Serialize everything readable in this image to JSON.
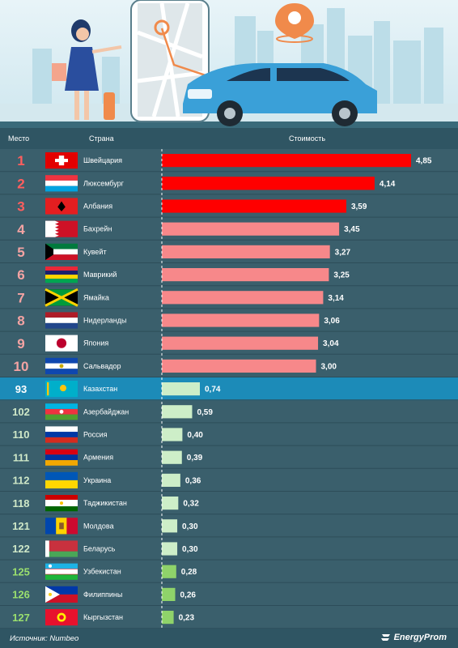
{
  "header": {
    "col_rank": "Место",
    "col_country": "Страна",
    "col_cost": "Стоимость"
  },
  "footer": {
    "source": "Источник: Numbeo",
    "brand": "EnergyProm"
  },
  "colors": {
    "top3": "#ff0000",
    "top10": "#f7888a",
    "other": "#cdeec8",
    "green": "#8fd36a",
    "rank_top": "#ff5e5e",
    "rank_top10": "#f4a3a3",
    "rank_other": "#cfe8c8",
    "rank_green": "#9be06e",
    "highlight_row": "#1c8bb8"
  },
  "chart_data": {
    "type": "bar",
    "orientation": "horizontal",
    "value_max": 4.85,
    "rows": [
      {
        "rank": "1",
        "country": "Швейцария",
        "value": 4.85,
        "flag": "switzerland-flag",
        "tier": "top3"
      },
      {
        "rank": "2",
        "country": "Люксембург",
        "value": 4.14,
        "flag": "luxembourg-flag",
        "tier": "top3"
      },
      {
        "rank": "3",
        "country": "Албания",
        "value": 3.59,
        "flag": "albania-flag",
        "tier": "top3"
      },
      {
        "rank": "4",
        "country": "Бахрейн",
        "value": 3.45,
        "flag": "bahrain-flag",
        "tier": "top10"
      },
      {
        "rank": "5",
        "country": "Кувейт",
        "value": 3.27,
        "flag": "kuwait-flag",
        "tier": "top10"
      },
      {
        "rank": "6",
        "country": "Маврикий",
        "value": 3.25,
        "flag": "mauritius-flag",
        "tier": "top10"
      },
      {
        "rank": "7",
        "country": "Ямайка",
        "value": 3.14,
        "flag": "jamaica-flag",
        "tier": "top10"
      },
      {
        "rank": "8",
        "country": "Нидерланды",
        "value": 3.06,
        "flag": "netherlands-flag",
        "tier": "top10"
      },
      {
        "rank": "9",
        "country": "Япония",
        "value": 3.04,
        "flag": "japan-flag",
        "tier": "top10"
      },
      {
        "rank": "10",
        "country": "Сальвадор",
        "value": 3.0,
        "flag": "el-salvador-flag",
        "tier": "top10"
      },
      {
        "rank": "93",
        "country": "Казахстан",
        "value": 0.74,
        "flag": "kazakhstan-flag",
        "tier": "other",
        "highlight": true
      },
      {
        "rank": "102",
        "country": "Азербайджан",
        "value": 0.59,
        "flag": "azerbaijan-flag",
        "tier": "other"
      },
      {
        "rank": "110",
        "country": "Россия",
        "value": 0.4,
        "flag": "russia-flag",
        "tier": "other"
      },
      {
        "rank": "111",
        "country": "Армения",
        "value": 0.39,
        "flag": "armenia-flag",
        "tier": "other"
      },
      {
        "rank": "112",
        "country": "Украина",
        "value": 0.36,
        "flag": "ukraine-flag",
        "tier": "other"
      },
      {
        "rank": "118",
        "country": "Таджикистан",
        "value": 0.32,
        "flag": "tajikistan-flag",
        "tier": "other"
      },
      {
        "rank": "121",
        "country": "Молдова",
        "value": 0.3,
        "flag": "moldova-flag",
        "tier": "other"
      },
      {
        "rank": "122",
        "country": "Беларусь",
        "value": 0.3,
        "flag": "belarus-flag",
        "tier": "other"
      },
      {
        "rank": "125",
        "country": "Узбекистан",
        "value": 0.28,
        "flag": "uzbekistan-flag",
        "tier": "green"
      },
      {
        "rank": "126",
        "country": "Филиппины",
        "value": 0.26,
        "flag": "philippines-flag",
        "tier": "green"
      },
      {
        "rank": "127",
        "country": "Кыргызстан",
        "value": 0.23,
        "flag": "kyrgyzstan-flag",
        "tier": "green"
      }
    ]
  }
}
